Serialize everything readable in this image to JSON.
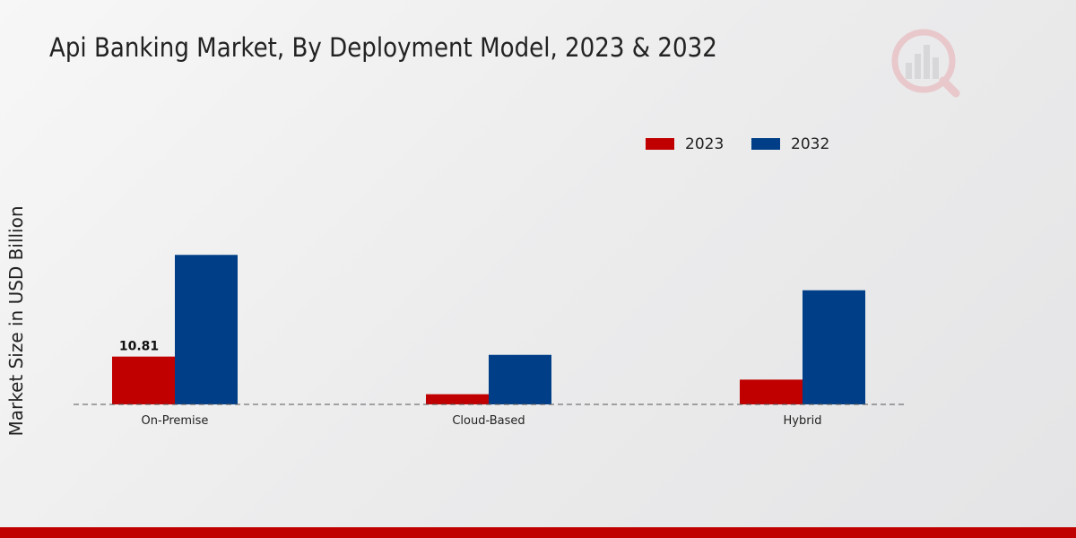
{
  "title": "Api Banking Market, By Deployment Model, 2023 & 2032",
  "colors": {
    "series_2023": "#c00000",
    "series_2032": "#003f87",
    "bottom_bar": "#c00000"
  },
  "icons": {
    "logo": "market-research-logo-icon"
  },
  "chart_data": {
    "type": "bar",
    "title": "Api Banking Market, By Deployment Model, 2023 & 2032",
    "xlabel": "",
    "ylabel": "Market Size in USD Billion",
    "categories": [
      "On-Premise",
      "Cloud-Based",
      "Hybrid"
    ],
    "series": [
      {
        "name": "2023",
        "values": [
          10.81,
          2.3,
          5.6
        ]
      },
      {
        "name": "2032",
        "values": [
          33.8,
          11.2,
          25.8
        ]
      }
    ],
    "data_labels": [
      {
        "series": 0,
        "category": 0,
        "text": "10.81"
      }
    ],
    "ylim": [
      0,
      60
    ],
    "grid": false,
    "legend_position": "top-right",
    "y_axis_ticks_visible": false
  }
}
